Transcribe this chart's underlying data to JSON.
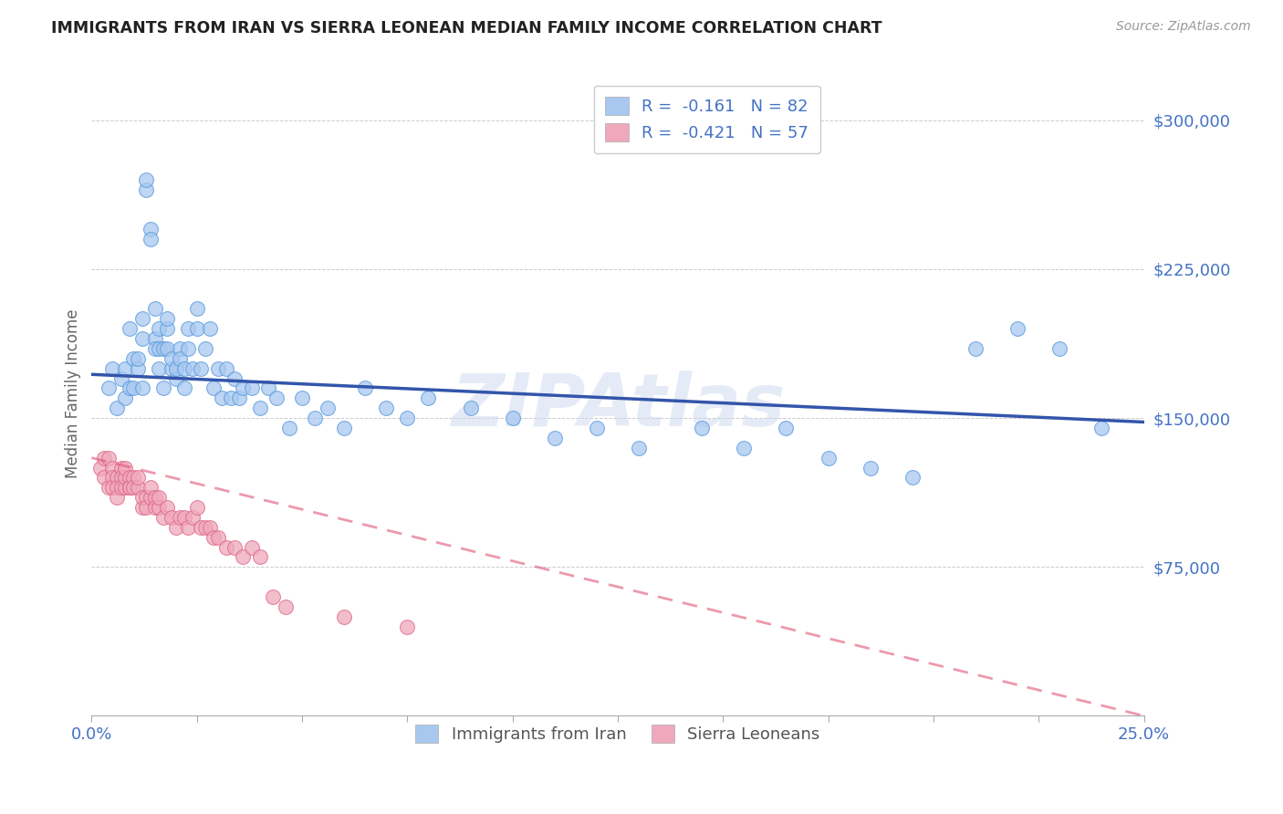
{
  "title": "IMMIGRANTS FROM IRAN VS SIERRA LEONEAN MEDIAN FAMILY INCOME CORRELATION CHART",
  "source": "Source: ZipAtlas.com",
  "ylabel": "Median Family Income",
  "ytick_labels": [
    "$75,000",
    "$150,000",
    "$225,000",
    "$300,000"
  ],
  "ytick_values": [
    75000,
    150000,
    225000,
    300000
  ],
  "ylim": [
    0,
    325000
  ],
  "xlim": [
    0.0,
    0.25
  ],
  "legend_iran": "R =  -0.161   N = 82",
  "legend_sierra": "R =  -0.421   N = 57",
  "legend_label_iran": "Immigrants from Iran",
  "legend_label_sierra": "Sierra Leoneans",
  "watermark": "ZIPAtlas",
  "title_color": "#222222",
  "source_color": "#999999",
  "iran_color": "#a8c8f0",
  "sierra_color": "#f0a8bc",
  "iran_line_color": "#3355aa",
  "sierra_line_color": "#e05575",
  "axis_label_color": "#4472c4",
  "background_color": "#ffffff",
  "grid_color": "#cccccc",
  "iran_scatter_x": [
    0.004,
    0.005,
    0.006,
    0.007,
    0.008,
    0.008,
    0.009,
    0.009,
    0.01,
    0.01,
    0.011,
    0.011,
    0.012,
    0.012,
    0.012,
    0.013,
    0.013,
    0.014,
    0.014,
    0.015,
    0.015,
    0.015,
    0.016,
    0.016,
    0.016,
    0.017,
    0.017,
    0.018,
    0.018,
    0.018,
    0.019,
    0.019,
    0.02,
    0.02,
    0.021,
    0.021,
    0.022,
    0.022,
    0.023,
    0.023,
    0.024,
    0.025,
    0.025,
    0.026,
    0.027,
    0.028,
    0.029,
    0.03,
    0.031,
    0.032,
    0.033,
    0.034,
    0.035,
    0.036,
    0.038,
    0.04,
    0.042,
    0.044,
    0.047,
    0.05,
    0.053,
    0.056,
    0.06,
    0.065,
    0.07,
    0.075,
    0.08,
    0.09,
    0.1,
    0.11,
    0.12,
    0.13,
    0.145,
    0.155,
    0.165,
    0.175,
    0.185,
    0.195,
    0.21,
    0.22,
    0.23,
    0.24
  ],
  "iran_scatter_y": [
    165000,
    175000,
    155000,
    170000,
    160000,
    175000,
    165000,
    195000,
    180000,
    165000,
    175000,
    180000,
    165000,
    190000,
    200000,
    265000,
    270000,
    245000,
    240000,
    205000,
    190000,
    185000,
    175000,
    185000,
    195000,
    165000,
    185000,
    195000,
    185000,
    200000,
    175000,
    180000,
    170000,
    175000,
    185000,
    180000,
    165000,
    175000,
    195000,
    185000,
    175000,
    195000,
    205000,
    175000,
    185000,
    195000,
    165000,
    175000,
    160000,
    175000,
    160000,
    170000,
    160000,
    165000,
    165000,
    155000,
    165000,
    160000,
    145000,
    160000,
    150000,
    155000,
    145000,
    165000,
    155000,
    150000,
    160000,
    155000,
    150000,
    140000,
    145000,
    135000,
    145000,
    135000,
    145000,
    130000,
    125000,
    120000,
    185000,
    195000,
    185000,
    145000
  ],
  "sierra_scatter_x": [
    0.002,
    0.003,
    0.003,
    0.004,
    0.004,
    0.005,
    0.005,
    0.005,
    0.006,
    0.006,
    0.006,
    0.007,
    0.007,
    0.007,
    0.008,
    0.008,
    0.008,
    0.009,
    0.009,
    0.009,
    0.01,
    0.01,
    0.011,
    0.011,
    0.012,
    0.012,
    0.013,
    0.013,
    0.014,
    0.014,
    0.015,
    0.015,
    0.016,
    0.016,
    0.017,
    0.018,
    0.019,
    0.02,
    0.021,
    0.022,
    0.023,
    0.024,
    0.025,
    0.026,
    0.027,
    0.028,
    0.029,
    0.03,
    0.032,
    0.034,
    0.036,
    0.038,
    0.04,
    0.043,
    0.046,
    0.06,
    0.075
  ],
  "sierra_scatter_y": [
    125000,
    130000,
    120000,
    130000,
    115000,
    125000,
    120000,
    115000,
    120000,
    115000,
    110000,
    125000,
    120000,
    115000,
    115000,
    120000,
    125000,
    120000,
    115000,
    115000,
    120000,
    115000,
    115000,
    120000,
    105000,
    110000,
    110000,
    105000,
    110000,
    115000,
    110000,
    105000,
    105000,
    110000,
    100000,
    105000,
    100000,
    95000,
    100000,
    100000,
    95000,
    100000,
    105000,
    95000,
    95000,
    95000,
    90000,
    90000,
    85000,
    85000,
    80000,
    85000,
    80000,
    60000,
    55000,
    50000,
    45000
  ]
}
